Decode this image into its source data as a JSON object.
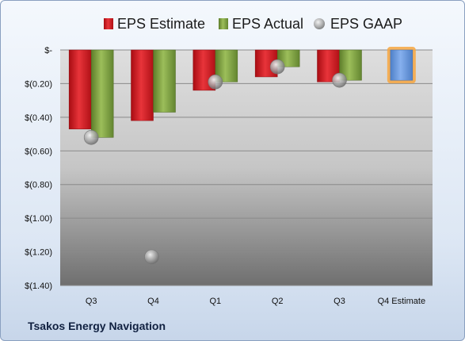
{
  "company": "Tsakos Energy Navigation",
  "colors": {
    "estimate": "#d8141c",
    "actual": "#7fa040",
    "gaap": "#a9a9a9",
    "forecast": "#5b8fdc",
    "forecast_glow": "#f7a640"
  },
  "chart_data": {
    "type": "bar",
    "categories": [
      "Q3",
      "Q4",
      "Q1",
      "Q2",
      "Q3",
      "Q4 Estimate"
    ],
    "series": [
      {
        "name": "EPS Estimate",
        "values": [
          -0.47,
          -0.42,
          -0.24,
          -0.16,
          -0.19,
          -0.18
        ]
      },
      {
        "name": "EPS Actual",
        "values": [
          -0.52,
          -0.37,
          -0.19,
          -0.1,
          -0.18,
          null
        ]
      },
      {
        "name": "EPS GAAP",
        "values": [
          -0.52,
          -1.23,
          -0.19,
          -0.1,
          -0.18,
          null
        ]
      }
    ],
    "yticks": [
      0,
      -0.2,
      -0.4,
      -0.6,
      -0.8,
      -1.0,
      -1.2,
      -1.4
    ],
    "ytick_labels": [
      "$-",
      "$(0.20)",
      "$(0.40)",
      "$(0.60)",
      "$(0.80)",
      "$(1.00)",
      "$(1.20)",
      "$(1.40)"
    ],
    "ylim": [
      -1.4,
      0
    ],
    "legend": "top",
    "grid": true
  }
}
